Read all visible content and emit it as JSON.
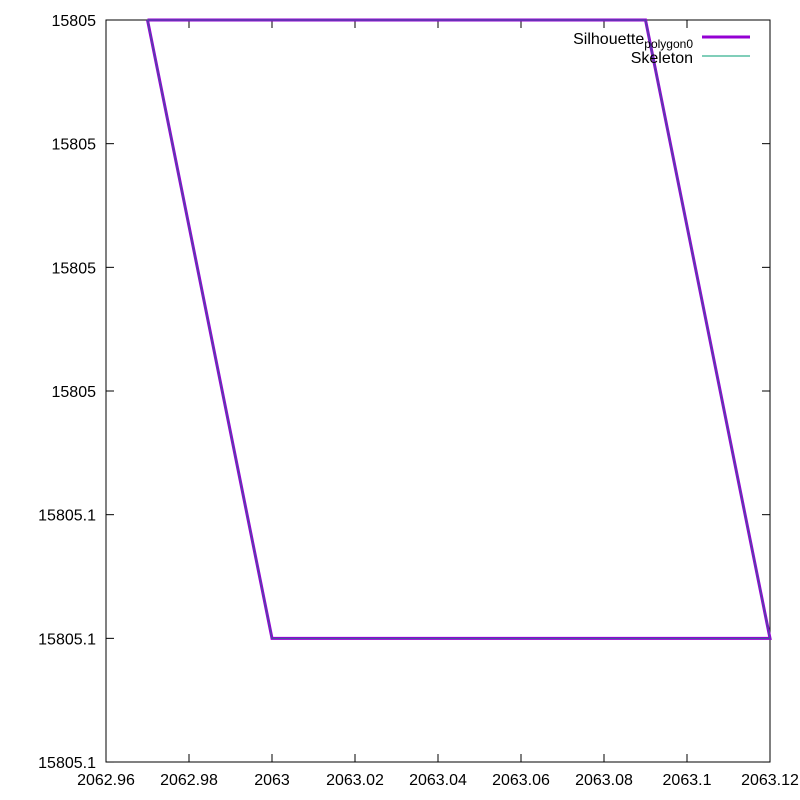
{
  "chart_data": {
    "type": "line",
    "title": "",
    "xlabel": "",
    "ylabel": "",
    "x_range": [
      2062.96,
      2063.12
    ],
    "x_ticks": [
      {
        "value": 2062.96,
        "label": "2062.96"
      },
      {
        "value": 2062.98,
        "label": "2062.98"
      },
      {
        "value": 2063.0,
        "label": "2063"
      },
      {
        "value": 2063.02,
        "label": "2063.02"
      },
      {
        "value": 2063.04,
        "label": "2063.04"
      },
      {
        "value": 2063.06,
        "label": "2063.06"
      },
      {
        "value": 2063.08,
        "label": "2063.08"
      },
      {
        "value": 2063.1,
        "label": "2063.1"
      },
      {
        "value": 2063.12,
        "label": "2063.12"
      }
    ],
    "y_ticks": [
      {
        "label": "15805.1"
      },
      {
        "label": "15805.1"
      },
      {
        "label": "15805.1"
      },
      {
        "label": "15805"
      },
      {
        "label": "15805"
      },
      {
        "label": "15805"
      },
      {
        "label": "15805"
      }
    ],
    "grid": false,
    "legend_position": "top-right",
    "series": [
      {
        "name": "Silhouette",
        "name_subscript": "polygon0",
        "color": "#9400d3",
        "points": [
          {
            "x": 2062.97,
            "y": 6
          },
          {
            "x": 2063.09,
            "y": 6
          },
          {
            "x": 2063.12,
            "y": 1
          },
          {
            "x": 2063.0,
            "y": 1
          },
          {
            "x": 2062.97,
            "y": 6
          }
        ]
      },
      {
        "name": "Skeleton",
        "name_subscript": "",
        "color": "#009e73",
        "points": [
          {
            "x": 2062.97,
            "y": 6
          },
          {
            "x": 2063.09,
            "y": 6
          },
          {
            "x": 2063.12,
            "y": 1
          },
          {
            "x": 2063.0,
            "y": 1
          },
          {
            "x": 2062.97,
            "y": 6
          }
        ]
      }
    ]
  }
}
